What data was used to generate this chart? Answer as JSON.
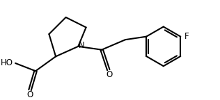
{
  "bg_color": "#ffffff",
  "line_color": "#000000",
  "line_width": 1.5,
  "font_size": 8.5,
  "label_N": "N",
  "label_O1": "O",
  "label_HO": "HO",
  "label_F": "F"
}
